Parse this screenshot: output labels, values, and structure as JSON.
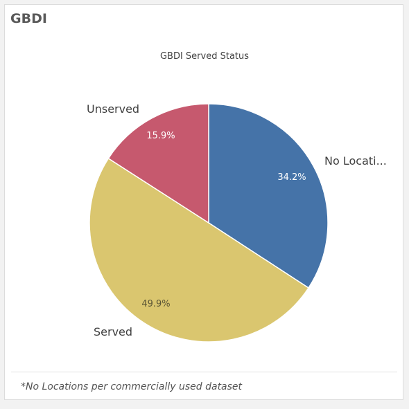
{
  "card": {
    "title": "GBDI",
    "footnote": "*No Locations per commercially used dataset"
  },
  "chart_data": {
    "type": "pie",
    "title": "GBDI Served Status",
    "slices": [
      {
        "label": "No Locati...",
        "value": 34.2,
        "value_label": "34.2%",
        "color": "#4573a8"
      },
      {
        "label": "Served",
        "value": 49.9,
        "value_label": "49.9%",
        "color": "#dac66f"
      },
      {
        "label": "Unserved",
        "value": 15.9,
        "value_label": "15.9%",
        "color": "#c6596e"
      }
    ],
    "start_angle": "12 o'clock",
    "direction": "clockwise",
    "legend": "none"
  }
}
